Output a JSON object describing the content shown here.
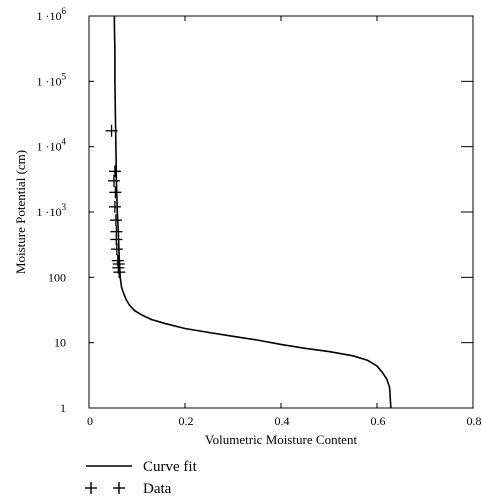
{
  "chart_data": {
    "type": "line",
    "xlabel": "Volumetric Moisture Content",
    "ylabel": "Moisture Potential (cm)",
    "xlim": [
      0,
      0.8
    ],
    "ylim": [
      1,
      1000000
    ],
    "yscale": "log",
    "grid": false,
    "legend_placement": "bottom-left, below plot",
    "x_ticks": [
      {
        "value": 0,
        "label": "0"
      },
      {
        "value": 0.2,
        "label": "0.2"
      },
      {
        "value": 0.4,
        "label": "0.4"
      },
      {
        "value": 0.6,
        "label": "0.6"
      },
      {
        "value": 0.8,
        "label": "0.8"
      }
    ],
    "y_ticks": [
      {
        "value": 1,
        "base": "1",
        "exp": ""
      },
      {
        "value": 10,
        "base": "10",
        "exp": ""
      },
      {
        "value": 100,
        "base": "100",
        "exp": ""
      },
      {
        "value": 1000,
        "base": "1 ·10",
        "exp": "3"
      },
      {
        "value": 10000,
        "base": "1 ·10",
        "exp": "4"
      },
      {
        "value": 100000,
        "base": "1 ·10",
        "exp": "5"
      },
      {
        "value": 1000000,
        "base": "1 ·10",
        "exp": "6"
      }
    ],
    "series": [
      {
        "name": "Curve fit",
        "style": "line",
        "x": [
          0.629,
          0.628,
          0.627,
          0.626,
          0.62,
          0.61,
          0.6,
          0.58,
          0.55,
          0.5,
          0.45,
          0.4,
          0.35,
          0.3,
          0.25,
          0.2,
          0.16,
          0.13,
          0.11,
          0.095,
          0.085,
          0.078,
          0.073,
          0.068,
          0.065,
          0.063,
          0.061,
          0.059,
          0.057,
          0.056,
          0.055,
          0.054,
          0.054,
          0.053,
          0.053
        ],
        "y": [
          1,
          1.3,
          1.7,
          2.1,
          2.8,
          3.6,
          4.4,
          5.4,
          6.3,
          7.3,
          8.2,
          9.4,
          11,
          12.5,
          14.3,
          16.5,
          19.5,
          22.6,
          26.5,
          31,
          37,
          45,
          55,
          70,
          100,
          200,
          500,
          1000,
          3000,
          10000,
          30000,
          100000,
          300000,
          700000,
          1000000
        ]
      },
      {
        "name": "Data",
        "style": "plus",
        "x": [
          0.047,
          0.054,
          0.052,
          0.055,
          0.054,
          0.056,
          0.057,
          0.057,
          0.058,
          0.06,
          0.062,
          0.061,
          0.063
        ],
        "y": [
          17500,
          4200,
          3000,
          2000,
          1200,
          750,
          500,
          380,
          270,
          180,
          160,
          140,
          120
        ]
      }
    ]
  }
}
